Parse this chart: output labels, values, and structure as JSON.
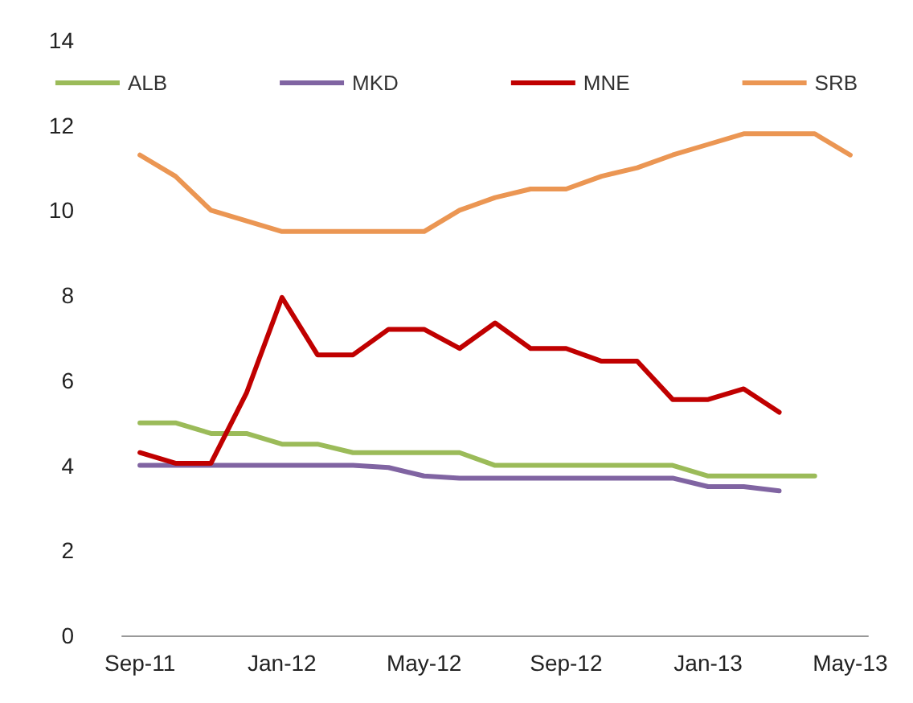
{
  "chart_data": {
    "type": "line",
    "categories": [
      "Sep-11",
      null,
      null,
      null,
      "Jan-12",
      null,
      null,
      null,
      "May-12",
      null,
      null,
      null,
      "Sep-12",
      null,
      null,
      null,
      "Jan-13",
      null,
      null,
      null,
      "May-13"
    ],
    "series": [
      {
        "name": "ALB",
        "color": "#9bbb59",
        "values": [
          5.0,
          5.0,
          4.75,
          4.75,
          4.5,
          4.5,
          4.3,
          4.3,
          4.3,
          4.3,
          4.0,
          4.0,
          4.0,
          4.0,
          4.0,
          4.0,
          3.75,
          3.75,
          3.75,
          3.75,
          null
        ]
      },
      {
        "name": "MKD",
        "color": "#8064a2",
        "values": [
          4.0,
          4.0,
          4.0,
          4.0,
          4.0,
          4.0,
          4.0,
          3.95,
          3.75,
          3.7,
          3.7,
          3.7,
          3.7,
          3.7,
          3.7,
          3.7,
          3.5,
          3.5,
          3.4,
          null,
          null
        ]
      },
      {
        "name": "MNE",
        "color": "#c00000",
        "values": [
          4.3,
          4.05,
          4.05,
          5.7,
          7.95,
          6.6,
          6.6,
          7.2,
          7.2,
          6.75,
          7.35,
          6.75,
          6.75,
          6.45,
          6.45,
          5.55,
          5.55,
          5.8,
          5.25,
          null,
          null
        ]
      },
      {
        "name": "SRB",
        "color": "#eb9653",
        "values": [
          11.3,
          10.8,
          10.0,
          9.75,
          9.5,
          9.5,
          9.5,
          9.5,
          9.5,
          10.0,
          10.3,
          10.5,
          10.5,
          10.8,
          11.0,
          11.3,
          11.55,
          11.8,
          11.8,
          11.8,
          11.3
        ]
      }
    ],
    "ylim": [
      0,
      14
    ],
    "yticks": [
      0,
      2,
      4,
      6,
      8,
      10,
      12,
      14
    ],
    "grid": false,
    "legend": "top",
    "marker": "none",
    "line_style": "solid"
  }
}
